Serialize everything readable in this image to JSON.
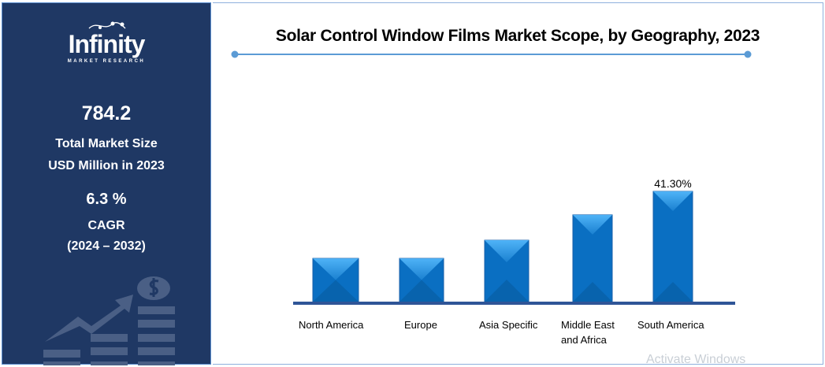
{
  "sidebar": {
    "logo_text": "Infinity",
    "logo_subtext": "MARKET RESEARCH",
    "market_size": "784.2",
    "market_size_label_1": "Total Market Size",
    "market_size_label_2": "USD Million in 2023",
    "cagr": "6.3 %",
    "cagr_label": "CAGR",
    "cagr_period": "(2024 – 2032)",
    "icon": "money-growth-icon"
  },
  "watermark": "Activate Windows",
  "colors": {
    "sidebar_bg": "#1f3864",
    "bar": "#0a6fc2",
    "bar_light": "#3fa4ef",
    "axis": "#2f5597",
    "title_line": "#5b9bd5"
  },
  "chart_data": {
    "type": "bar",
    "title": "Solar Control Window Films Market Scope, by Geography, 2023",
    "categories": [
      "North America",
      "Europe",
      "Asia Specific",
      "Middle East and Africa",
      "South America"
    ],
    "category_lines": [
      [
        "North America"
      ],
      [
        "Europe"
      ],
      [
        "Asia Specific"
      ],
      [
        "Middle East",
        "and Africa"
      ],
      [
        "South America"
      ]
    ],
    "values": [
      16.2,
      16.2,
      23.0,
      32.5,
      41.3
    ],
    "data_labels": [
      "",
      "",
      "",
      "",
      "41.30%"
    ],
    "unit": "%",
    "ylim": [
      0,
      41.3
    ],
    "grid": false,
    "legend": "none"
  }
}
